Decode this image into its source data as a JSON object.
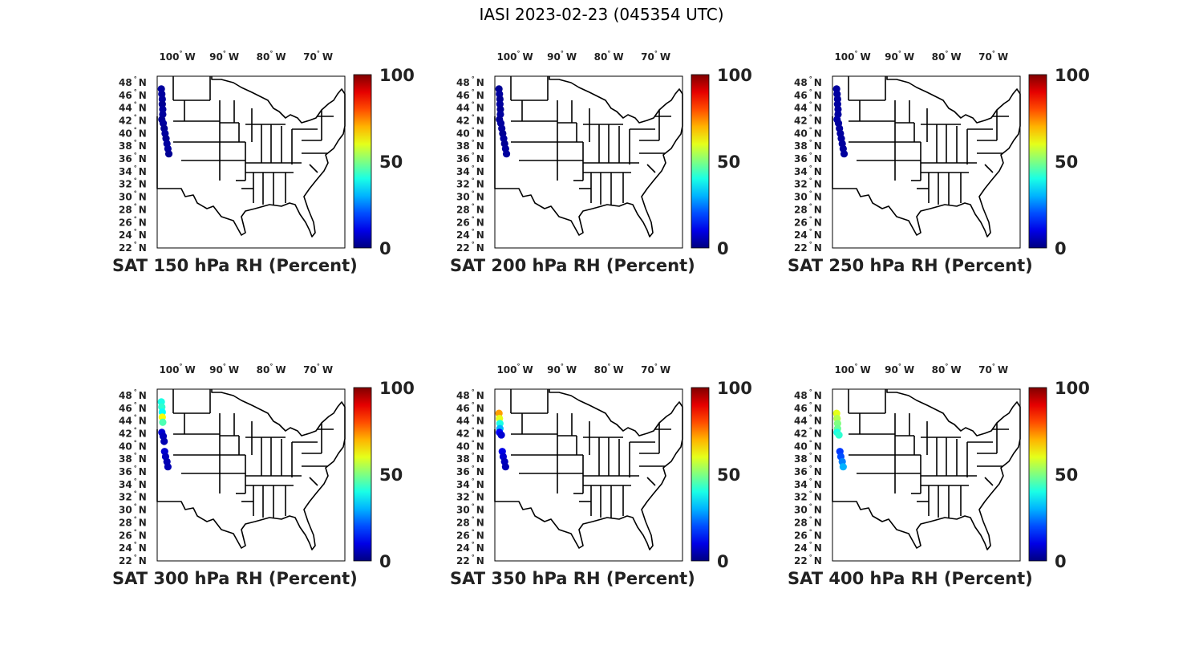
{
  "figure": {
    "title": "IASI 2023-02-23 (045354 UTC)"
  },
  "axes": {
    "lon_labels": [
      "100",
      "90",
      "80",
      "70"
    ],
    "lon_values": [
      -100,
      -90,
      -80,
      -70
    ],
    "lon_suffix": "W",
    "lat_labels": [
      "48",
      "46",
      "44",
      "42",
      "40",
      "38",
      "36",
      "34",
      "32",
      "30",
      "28",
      "26",
      "24",
      "22"
    ],
    "lat_values": [
      48,
      46,
      44,
      42,
      40,
      38,
      36,
      34,
      32,
      30,
      28,
      26,
      24,
      22
    ],
    "lat_suffix": "N",
    "lon_range": [
      -106,
      -66
    ],
    "lat_range": [
      22,
      49
    ]
  },
  "colorbar": {
    "labels": [
      "100",
      "50",
      "0"
    ],
    "range": [
      0,
      100
    ],
    "colormap": "jet"
  },
  "colors": {
    "map_lines": "#000000",
    "jet_dark_blue": "#00008f",
    "jet_red": "#800000"
  },
  "chart_data": {
    "type": "scatter",
    "panels": [
      {
        "caption": "SAT 150 hPa RH (Percent)",
        "points": [
          {
            "lon": -105.8,
            "lat": 47.0,
            "rh": 3
          },
          {
            "lon": -105.7,
            "lat": 46.2,
            "rh": 3
          },
          {
            "lon": -105.6,
            "lat": 45.4,
            "rh": 3
          },
          {
            "lon": -105.6,
            "lat": 44.6,
            "rh": 2
          },
          {
            "lon": -105.5,
            "lat": 43.8,
            "rh": 3
          },
          {
            "lon": -105.5,
            "lat": 43.0,
            "rh": 3
          },
          {
            "lon": -105.7,
            "lat": 42.2,
            "rh": 2
          },
          {
            "lon": -105.4,
            "lat": 41.6,
            "rh": 3
          },
          {
            "lon": -105.2,
            "lat": 40.8,
            "rh": 2
          },
          {
            "lon": -105.0,
            "lat": 40.0,
            "rh": 3
          },
          {
            "lon": -104.8,
            "lat": 39.2,
            "rh": 2
          },
          {
            "lon": -104.6,
            "lat": 38.4,
            "rh": 3
          },
          {
            "lon": -104.4,
            "lat": 37.6,
            "rh": 3
          },
          {
            "lon": -104.2,
            "lat": 36.8,
            "rh": 2
          }
        ]
      },
      {
        "caption": "SAT 200 hPa RH (Percent)",
        "points": [
          {
            "lon": -105.8,
            "lat": 47.0,
            "rh": 2
          },
          {
            "lon": -105.7,
            "lat": 46.2,
            "rh": 3
          },
          {
            "lon": -105.6,
            "lat": 45.4,
            "rh": 2
          },
          {
            "lon": -105.6,
            "lat": 44.6,
            "rh": 3
          },
          {
            "lon": -105.5,
            "lat": 43.8,
            "rh": 2
          },
          {
            "lon": -105.5,
            "lat": 43.0,
            "rh": 3
          },
          {
            "lon": -105.7,
            "lat": 42.2,
            "rh": 2
          },
          {
            "lon": -105.4,
            "lat": 41.6,
            "rh": 3
          },
          {
            "lon": -105.2,
            "lat": 40.8,
            "rh": 3
          },
          {
            "lon": -105.0,
            "lat": 40.0,
            "rh": 2
          },
          {
            "lon": -104.8,
            "lat": 39.2,
            "rh": 3
          },
          {
            "lon": -104.6,
            "lat": 38.4,
            "rh": 2
          },
          {
            "lon": -104.4,
            "lat": 37.6,
            "rh": 3
          },
          {
            "lon": -104.2,
            "lat": 36.8,
            "rh": 3
          }
        ]
      },
      {
        "caption": "SAT 250 hPa RH (Percent)",
        "points": [
          {
            "lon": -105.8,
            "lat": 47.0,
            "rh": 3
          },
          {
            "lon": -105.7,
            "lat": 46.2,
            "rh": 3
          },
          {
            "lon": -105.6,
            "lat": 45.4,
            "rh": 3
          },
          {
            "lon": -105.6,
            "lat": 44.6,
            "rh": 3
          },
          {
            "lon": -105.5,
            "lat": 43.8,
            "rh": 3
          },
          {
            "lon": -105.5,
            "lat": 43.0,
            "rh": 3
          },
          {
            "lon": -105.7,
            "lat": 42.2,
            "rh": 4
          },
          {
            "lon": -105.4,
            "lat": 41.6,
            "rh": 3
          },
          {
            "lon": -105.2,
            "lat": 40.8,
            "rh": 3
          },
          {
            "lon": -105.0,
            "lat": 40.0,
            "rh": 3
          },
          {
            "lon": -104.8,
            "lat": 39.2,
            "rh": 3
          },
          {
            "lon": -104.6,
            "lat": 38.4,
            "rh": 3
          },
          {
            "lon": -104.4,
            "lat": 37.6,
            "rh": 3
          },
          {
            "lon": -104.2,
            "lat": 36.8,
            "rh": 3
          }
        ]
      },
      {
        "caption": "SAT 300 hPa RH (Percent)",
        "points": [
          {
            "lon": -105.8,
            "lat": 47.0,
            "rh": 40
          },
          {
            "lon": -105.7,
            "lat": 46.2,
            "rh": 42
          },
          {
            "lon": -105.6,
            "lat": 45.4,
            "rh": 38
          },
          {
            "lon": -105.6,
            "lat": 44.6,
            "rh": 62
          },
          {
            "lon": -105.5,
            "lat": 43.8,
            "rh": 45
          },
          {
            "lon": -105.7,
            "lat": 42.2,
            "rh": 8
          },
          {
            "lon": -105.4,
            "lat": 41.6,
            "rh": 6
          },
          {
            "lon": -105.2,
            "lat": 40.8,
            "rh": 5
          },
          {
            "lon": -105.1,
            "lat": 39.2,
            "rh": 8
          },
          {
            "lon": -104.9,
            "lat": 38.4,
            "rh": 6
          },
          {
            "lon": -104.6,
            "lat": 37.6,
            "rh": 5
          },
          {
            "lon": -104.4,
            "lat": 36.8,
            "rh": 5
          }
        ]
      },
      {
        "caption": "SAT 350 hPa RH (Percent)",
        "points": [
          {
            "lon": -105.8,
            "lat": 45.2,
            "rh": 72
          },
          {
            "lon": -105.7,
            "lat": 44.4,
            "rh": 60
          },
          {
            "lon": -105.6,
            "lat": 43.6,
            "rh": 40
          },
          {
            "lon": -105.6,
            "lat": 42.8,
            "rh": 30
          },
          {
            "lon": -105.7,
            "lat": 42.2,
            "rh": 12
          },
          {
            "lon": -105.3,
            "lat": 41.8,
            "rh": 8
          },
          {
            "lon": -105.1,
            "lat": 39.2,
            "rh": 10
          },
          {
            "lon": -104.9,
            "lat": 38.4,
            "rh": 8
          },
          {
            "lon": -104.6,
            "lat": 37.6,
            "rh": 6
          },
          {
            "lon": -104.4,
            "lat": 36.8,
            "rh": 5
          }
        ]
      },
      {
        "caption": "SAT 400 hPa RH (Percent)",
        "points": [
          {
            "lon": -105.8,
            "lat": 45.2,
            "rh": 60
          },
          {
            "lon": -105.7,
            "lat": 44.4,
            "rh": 55
          },
          {
            "lon": -105.6,
            "lat": 43.6,
            "rh": 50
          },
          {
            "lon": -105.6,
            "lat": 42.8,
            "rh": 48
          },
          {
            "lon": -105.7,
            "lat": 42.2,
            "rh": 40
          },
          {
            "lon": -105.3,
            "lat": 41.8,
            "rh": 42
          },
          {
            "lon": -105.1,
            "lat": 39.2,
            "rh": 18
          },
          {
            "lon": -104.9,
            "lat": 38.4,
            "rh": 20
          },
          {
            "lon": -104.6,
            "lat": 37.6,
            "rh": 25
          },
          {
            "lon": -104.4,
            "lat": 36.8,
            "rh": 30
          }
        ]
      }
    ]
  }
}
